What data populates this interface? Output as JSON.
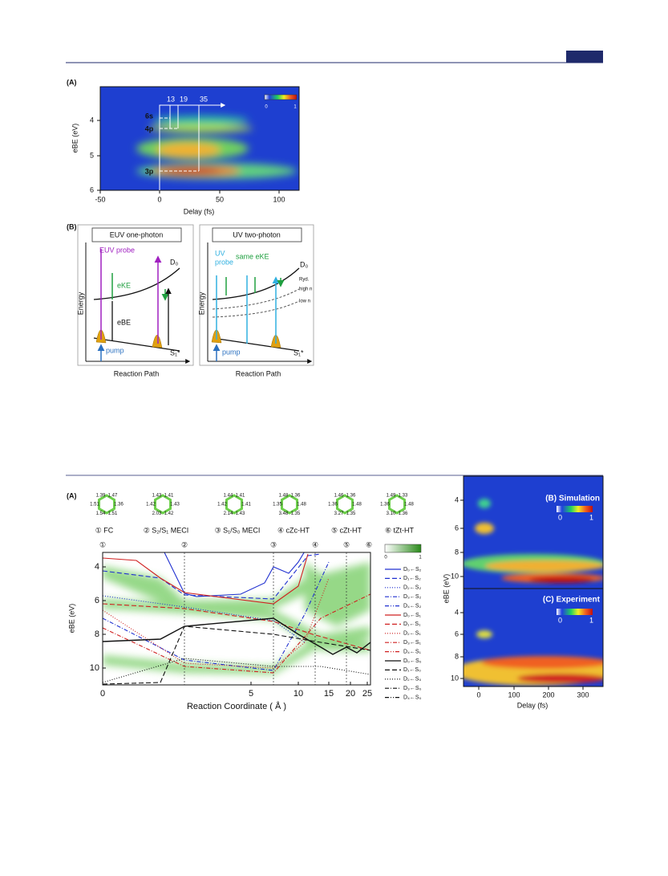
{
  "fig1": {
    "a": {
      "label": "(A)",
      "ylabel": "eBE (eV)",
      "xlabel": "Delay (fs)",
      "xticks": [
        "-50",
        "0",
        "50",
        "100"
      ],
      "yticks": [
        "4",
        "5",
        "6"
      ],
      "delays": [
        "13",
        "19",
        "35"
      ],
      "states": [
        "6s",
        "4p",
        "3p"
      ],
      "colorbar": [
        "0",
        "1"
      ]
    },
    "b": {
      "label": "(B)",
      "euv": {
        "title": "EUV one-photon",
        "probe": "EUV probe",
        "eke": "eKE",
        "ebe": "eBE",
        "pump": "pump",
        "d0": "D₀",
        "s1": "S₁*",
        "energy": "Energy",
        "xlabel": "Reaction Path"
      },
      "uv": {
        "title": "UV two-photon",
        "probe": [
          "UV",
          "probe"
        ],
        "same": "same eKE",
        "d0": "D₀",
        "ryd": "Ryd.",
        "high": "high n",
        "low": "low n",
        "pump": "pump",
        "s1": "S₁*",
        "energy": "Energy",
        "xlabel": "Reaction Path"
      }
    }
  },
  "fig2": {
    "a": {
      "label": "(A)",
      "molecules": [
        {
          "caption": "① FC",
          "bonds": [
            "1.47",
            "1.36",
            "1.51",
            "1.54",
            "1.51",
            "1.39"
          ]
        },
        {
          "caption": "② S₂/S₁ MECI",
          "bonds": [
            "1.41",
            "1.43",
            "1.42",
            "2.03",
            "1.42",
            "1.43"
          ]
        },
        {
          "caption": "③ S₁/S₀ MECI",
          "bonds": [
            "1.41",
            "1.41",
            "1.43",
            "2.14",
            "1.42",
            "1.44"
          ]
        },
        {
          "caption": "④ cZc-HT",
          "bonds": [
            "1.36",
            "1.48",
            "1.35",
            "3.48",
            "1.35",
            "1.48"
          ]
        },
        {
          "caption": "⑤ cZt-HT",
          "bonds": [
            "1.36",
            "1.48",
            "1.35",
            "3.27",
            "1.36",
            "1.46"
          ]
        },
        {
          "caption": "⑥ tZt-HT",
          "bonds": [
            "1.33",
            "1.48",
            "1.36",
            "3.10",
            "1.36",
            "1.49"
          ]
        }
      ],
      "markers": [
        "①",
        "②",
        "③",
        "④",
        "⑤",
        "⑥"
      ],
      "yticks": [
        "4",
        "6",
        "8",
        "10"
      ],
      "ylabel": "eBE (eV)",
      "xticks": [
        "0",
        "5",
        "10",
        "15",
        "20",
        "25"
      ],
      "xlabel": "Reaction Coordinate ( Å )",
      "colorbar": [
        "0",
        "1"
      ],
      "legend": [
        "D₀←S₂",
        "D₁←S₂",
        "D₂←S₂",
        "D₃←S₂",
        "D₄←S₂",
        "D₀←S₁",
        "D₁←S₁",
        "D₂←S₁",
        "D₃←S₁",
        "D₄←S₁",
        "D₀←S₀",
        "D₁←S₀",
        "D₂←S₀",
        "D₃←S₀",
        "D₄←S₀"
      ]
    },
    "b": {
      "label": "(B) Simulation",
      "colorbar": [
        "0",
        "1"
      ],
      "yticks": [
        "4",
        "6",
        "8",
        "10"
      ]
    },
    "c": {
      "label": "(C) Experiment",
      "colorbar": [
        "0",
        "1"
      ],
      "yticks": [
        "4",
        "6",
        "8",
        "10"
      ]
    },
    "xticks": [
      "0",
      "100",
      "200",
      "300"
    ],
    "xlabel": "Delay (fs)",
    "ylabel": "eBE (eV)"
  }
}
